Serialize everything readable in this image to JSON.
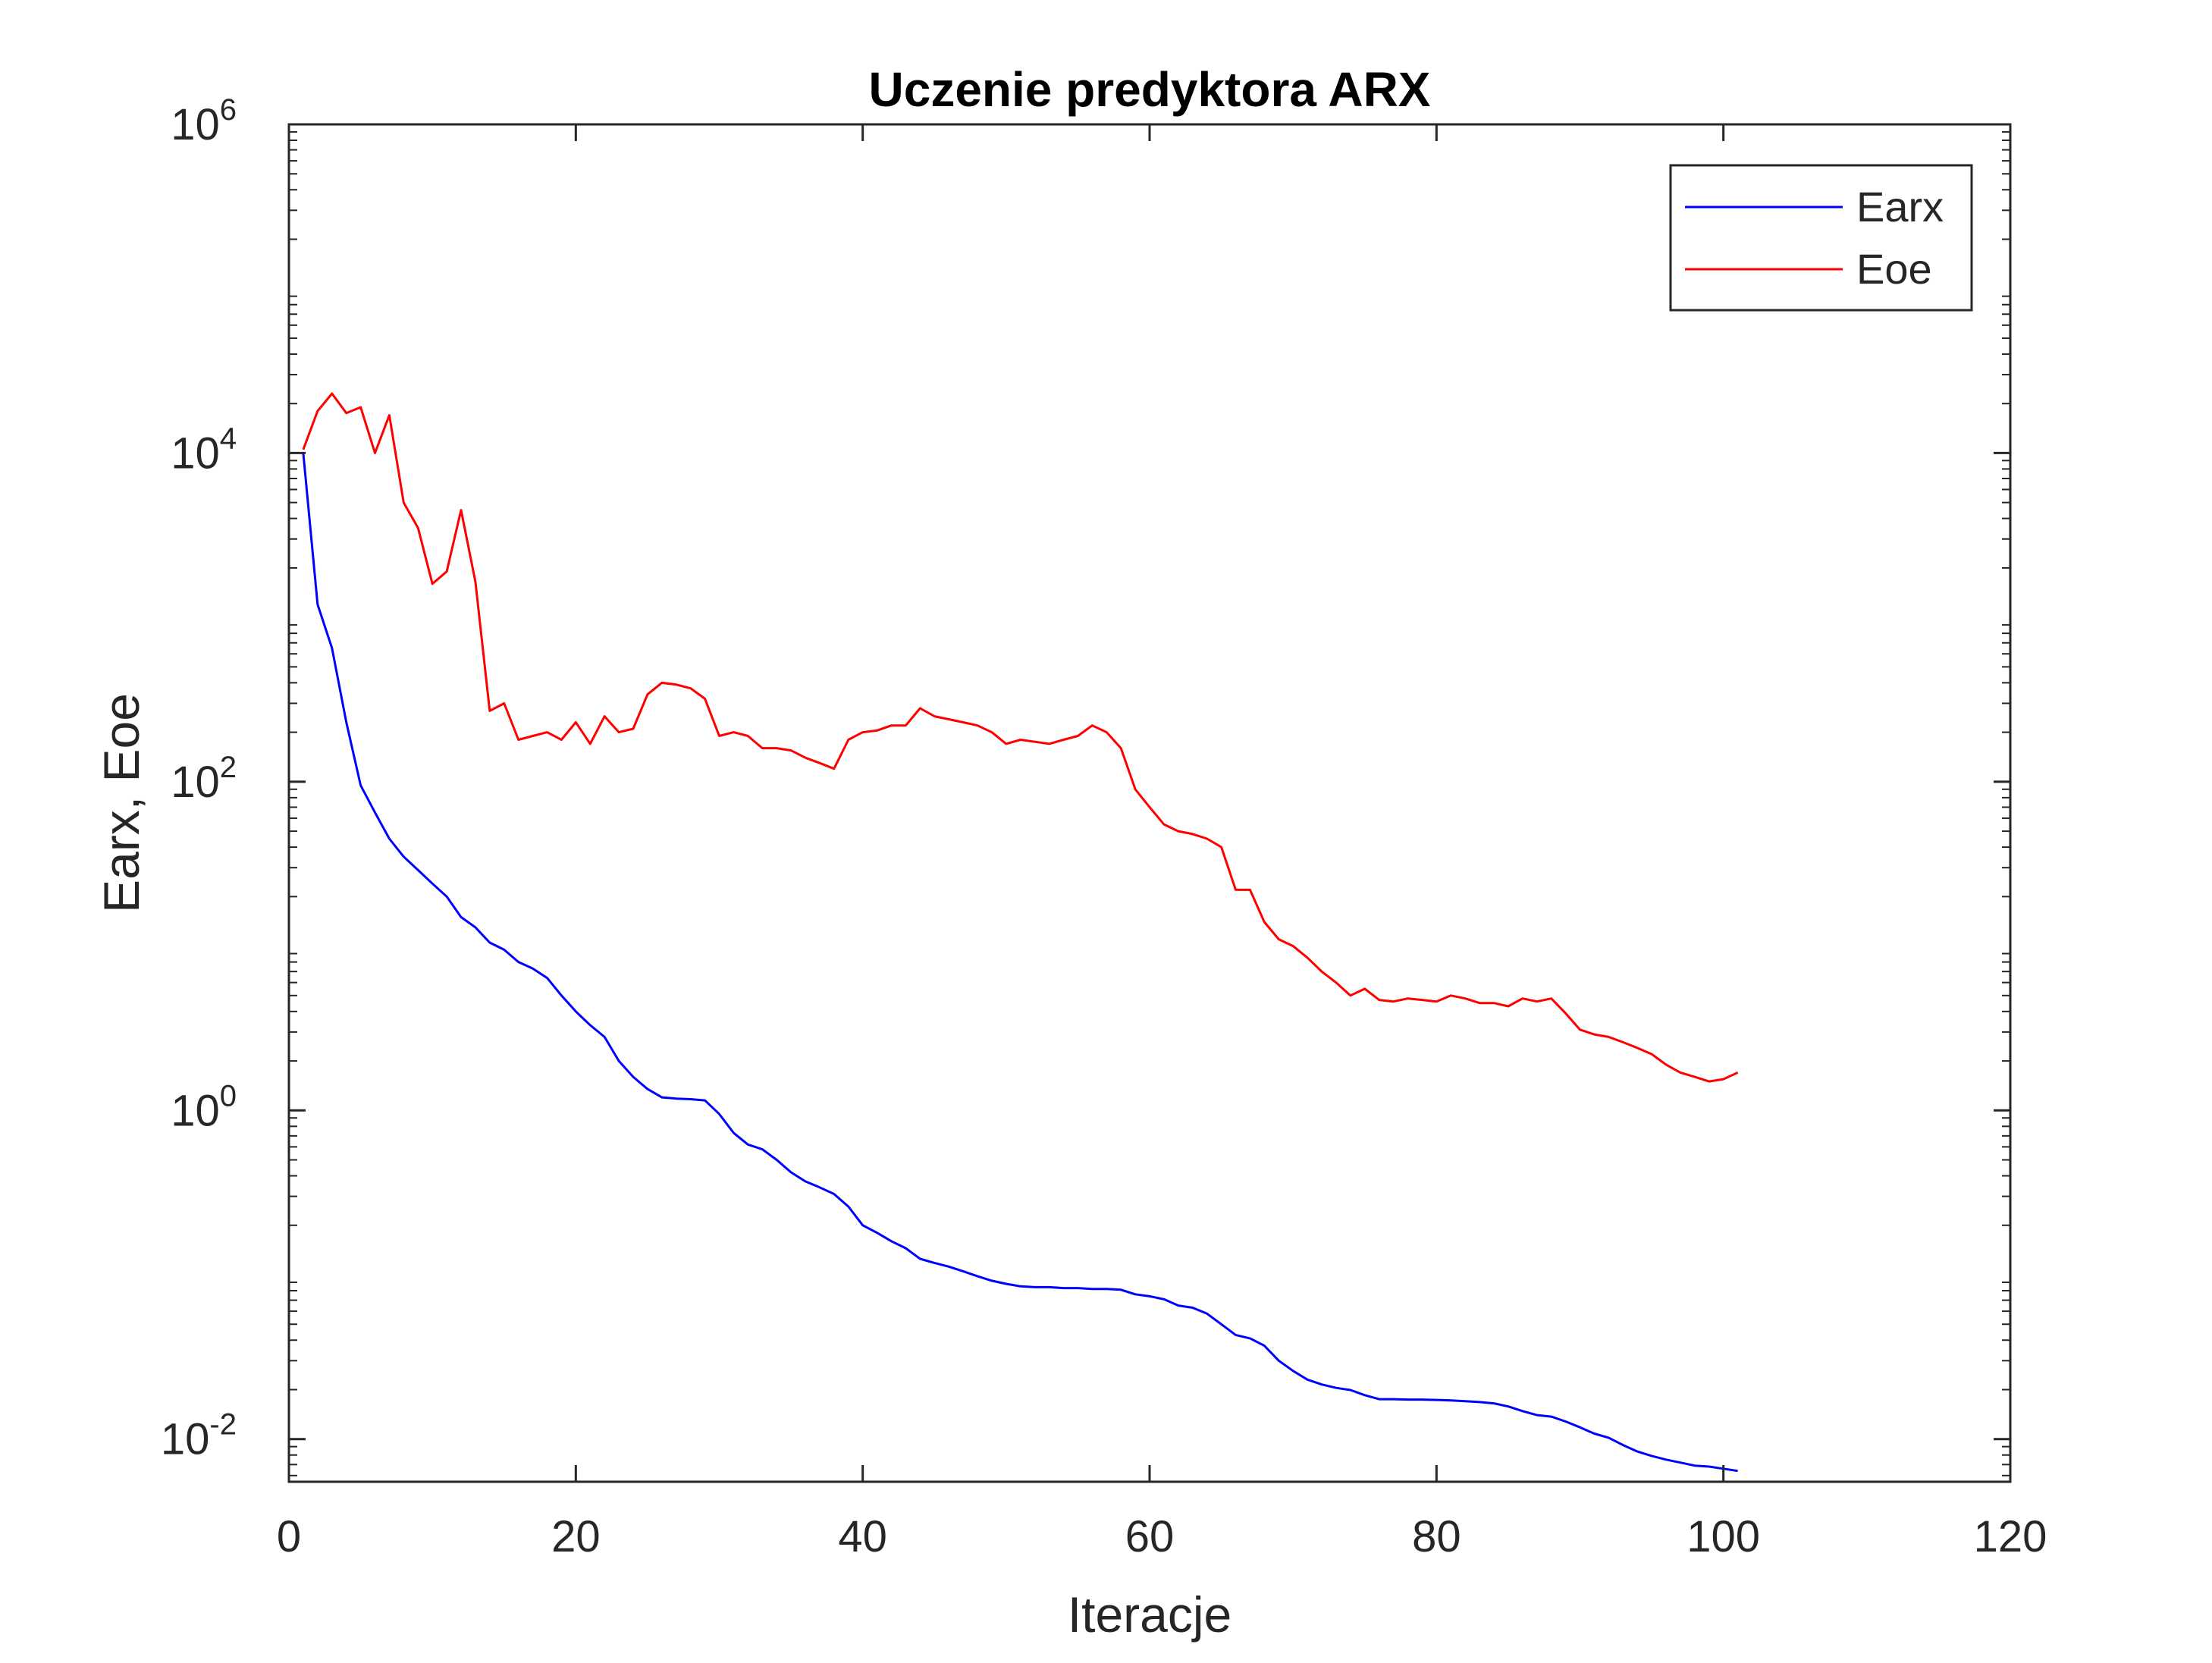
{
  "chart_data": {
    "type": "line",
    "title": "Uczenie predyktora ARX",
    "xlabel": "Iteracje",
    "ylabel": "Earx, Eoe",
    "xlim": [
      0,
      120
    ],
    "ylim": [
      0.0055,
      1000000
    ],
    "yscale": "log",
    "grid": false,
    "legend_position": "top-right",
    "x_ticks": [
      0,
      20,
      40,
      60,
      80,
      100,
      120
    ],
    "x_tick_labels": [
      "0",
      "20",
      "40",
      "60",
      "80",
      "100",
      "120"
    ],
    "y_ticks": [
      0.01,
      1,
      100,
      10000,
      1000000
    ],
    "y_tick_labels": [
      {
        "base": "10",
        "exp": "-2"
      },
      {
        "base": "10",
        "exp": "0"
      },
      {
        "base": "10",
        "exp": "2"
      },
      {
        "base": "10",
        "exp": "4"
      },
      {
        "base": "10",
        "exp": "6"
      }
    ],
    "series": [
      {
        "name": "Earx",
        "color": "#0000ff",
        "x": [
          1,
          2,
          3,
          4,
          5,
          6,
          7,
          8,
          9,
          10,
          11,
          12,
          13,
          14,
          15,
          16,
          17,
          18,
          19,
          20,
          21,
          22,
          23,
          24,
          25,
          26,
          27,
          28,
          29,
          30,
          31,
          32,
          33,
          34,
          35,
          36,
          37,
          38,
          39,
          40,
          41,
          42,
          43,
          44,
          45,
          46,
          47,
          48,
          49,
          50,
          51,
          52,
          53,
          54,
          55,
          56,
          57,
          58,
          59,
          60,
          61,
          62,
          63,
          64,
          65,
          66,
          67,
          68,
          69,
          70,
          71,
          72,
          73,
          74,
          75,
          76,
          77,
          78,
          79,
          80,
          81,
          82,
          83,
          84,
          85,
          86,
          87,
          88,
          89,
          90,
          91,
          92,
          93,
          94,
          95,
          96,
          97,
          98,
          99,
          100,
          101
        ],
        "values": [
          10000,
          1200,
          650,
          230,
          95,
          65,
          45,
          35,
          29,
          24,
          20,
          15,
          13,
          10.5,
          9.5,
          8,
          7.3,
          6.4,
          5,
          4,
          3.3,
          2.8,
          2,
          1.6,
          1.35,
          1.2,
          1.18,
          1.17,
          1.15,
          0.95,
          0.73,
          0.62,
          0.58,
          0.5,
          0.42,
          0.37,
          0.34,
          0.31,
          0.26,
          0.2,
          0.18,
          0.16,
          0.145,
          0.125,
          0.118,
          0.112,
          0.105,
          0.098,
          0.092,
          0.088,
          0.085,
          0.084,
          0.084,
          0.083,
          0.083,
          0.082,
          0.082,
          0.081,
          0.076,
          0.074,
          0.071,
          0.065,
          0.063,
          0.058,
          0.05,
          0.043,
          0.041,
          0.037,
          0.03,
          0.026,
          0.023,
          0.0215,
          0.0205,
          0.0199,
          0.0185,
          0.0175,
          0.0175,
          0.0174,
          0.0174,
          0.0173,
          0.0172,
          0.017,
          0.0168,
          0.0165,
          0.0158,
          0.0148,
          0.014,
          0.0137,
          0.0128,
          0.0118,
          0.0108,
          0.0102,
          0.0092,
          0.0084,
          0.0079,
          0.0075,
          0.0072,
          0.0069,
          0.0068,
          0.0066,
          0.0064
        ]
      },
      {
        "name": "Eoe",
        "color": "#ff0000",
        "x": [
          1,
          2,
          3,
          4,
          5,
          6,
          7,
          8,
          9,
          10,
          11,
          12,
          13,
          14,
          15,
          16,
          17,
          18,
          19,
          20,
          21,
          22,
          23,
          24,
          25,
          26,
          27,
          28,
          29,
          30,
          31,
          32,
          33,
          34,
          35,
          36,
          37,
          38,
          39,
          40,
          41,
          42,
          43,
          44,
          45,
          46,
          47,
          48,
          49,
          50,
          51,
          52,
          53,
          54,
          55,
          56,
          57,
          58,
          59,
          60,
          61,
          62,
          63,
          64,
          65,
          66,
          67,
          68,
          69,
          70,
          71,
          72,
          73,
          74,
          75,
          76,
          77,
          78,
          79,
          80,
          81,
          82,
          83,
          84,
          85,
          86,
          87,
          88,
          89,
          90,
          91,
          92,
          93,
          94,
          95,
          96,
          97,
          98,
          99,
          100,
          101
        ],
        "values": [
          10500,
          18000,
          23000,
          17500,
          19000,
          10000,
          17000,
          5000,
          3500,
          1600,
          1900,
          4500,
          1650,
          270,
          300,
          180,
          190,
          200,
          180,
          230,
          170,
          250,
          200,
          210,
          340,
          400,
          390,
          370,
          320,
          190,
          200,
          190,
          160,
          160,
          155,
          140,
          130,
          120,
          180,
          200,
          205,
          220,
          220,
          280,
          250,
          240,
          230,
          220,
          200,
          170,
          180,
          175,
          170,
          180,
          190,
          220,
          200,
          160,
          90,
          70,
          55,
          50,
          48,
          45,
          40,
          22,
          22,
          14,
          11,
          10,
          8.5,
          7,
          6,
          5,
          5.5,
          4.7,
          4.6,
          4.8,
          4.7,
          4.6,
          5,
          4.8,
          4.5,
          4.5,
          4.3,
          4.8,
          4.6,
          4.8,
          3.9,
          3.1,
          2.9,
          2.8,
          2.6,
          2.4,
          2.2,
          1.9,
          1.7,
          1.6,
          1.5,
          1.55,
          1.7
        ]
      }
    ]
  }
}
